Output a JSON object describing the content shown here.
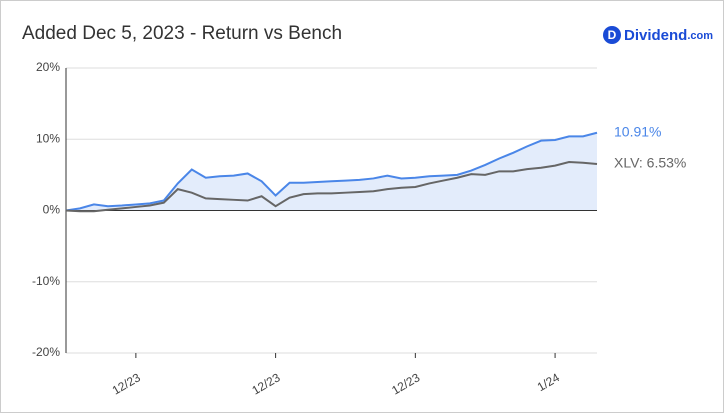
{
  "brand": {
    "name": "Dividend",
    "suffix": ".com"
  },
  "chart_data": {
    "type": "line",
    "title": "Added Dec 5, 2023 - Return vs Bench",
    "categories": [
      null,
      null,
      null,
      null,
      null,
      "12/23",
      null,
      null,
      null,
      null,
      null,
      null,
      null,
      null,
      null,
      "12/23",
      null,
      null,
      null,
      null,
      null,
      null,
      null,
      null,
      null,
      "12/23",
      null,
      null,
      null,
      null,
      null,
      null,
      null,
      null,
      null,
      "1/24",
      null,
      null,
      null
    ],
    "series": [
      {
        "color": "#4a86e8",
        "area_color": "#e3ecfb",
        "values": [
          0,
          0.3,
          0.85,
          0.6,
          0.7,
          0.85,
          1.0,
          1.4,
          3.8,
          5.75,
          4.6,
          4.8,
          4.9,
          5.2,
          4.1,
          2.1,
          3.9,
          3.9,
          4.0,
          4.1,
          4.2,
          4.3,
          4.5,
          4.9,
          4.5,
          4.6,
          4.8,
          4.9,
          5.0,
          5.6,
          6.4,
          7.3,
          8.1,
          9.0,
          9.8,
          9.9,
          10.4,
          10.4,
          10.91
        ],
        "value_labels": [
          null,
          null,
          null,
          null,
          null,
          null,
          null,
          null,
          null,
          null,
          null,
          null,
          null,
          null,
          null,
          null,
          null,
          null,
          null,
          null,
          null,
          null,
          null,
          null,
          null,
          null,
          null,
          null,
          null,
          null,
          null,
          null,
          null,
          null,
          null,
          null,
          null,
          null,
          "10.91%"
        ]
      },
      {
        "color": "#666666",
        "values": [
          0,
          -0.1,
          -0.1,
          0.1,
          0.3,
          0.5,
          0.7,
          1.1,
          3.0,
          2.5,
          1.7,
          1.6,
          1.5,
          1.4,
          2.0,
          0.6,
          1.8,
          2.3,
          2.4,
          2.4,
          2.5,
          2.6,
          2.7,
          3.0,
          3.2,
          3.3,
          3.8,
          4.2,
          4.6,
          5.1,
          5.0,
          5.5,
          5.5,
          5.8,
          6.0,
          6.3,
          6.8,
          6.7,
          6.53
        ],
        "value_labels": [
          null,
          null,
          null,
          null,
          null,
          null,
          null,
          null,
          null,
          null,
          null,
          null,
          null,
          null,
          null,
          null,
          null,
          null,
          null,
          null,
          null,
          null,
          null,
          null,
          null,
          null,
          null,
          null,
          null,
          null,
          null,
          null,
          null,
          null,
          null,
          null,
          null,
          null,
          "XLV: 6.53%"
        ]
      }
    ],
    "ylim": [
      -20,
      20
    ],
    "yticks": [
      {
        "value": -20,
        "label": "-20%"
      },
      {
        "value": -10,
        "label": "-10%"
      },
      {
        "value": 0,
        "label": "0%"
      },
      {
        "value": 10,
        "label": "10%"
      },
      {
        "value": 20,
        "label": "20%"
      }
    ],
    "grid": true
  }
}
